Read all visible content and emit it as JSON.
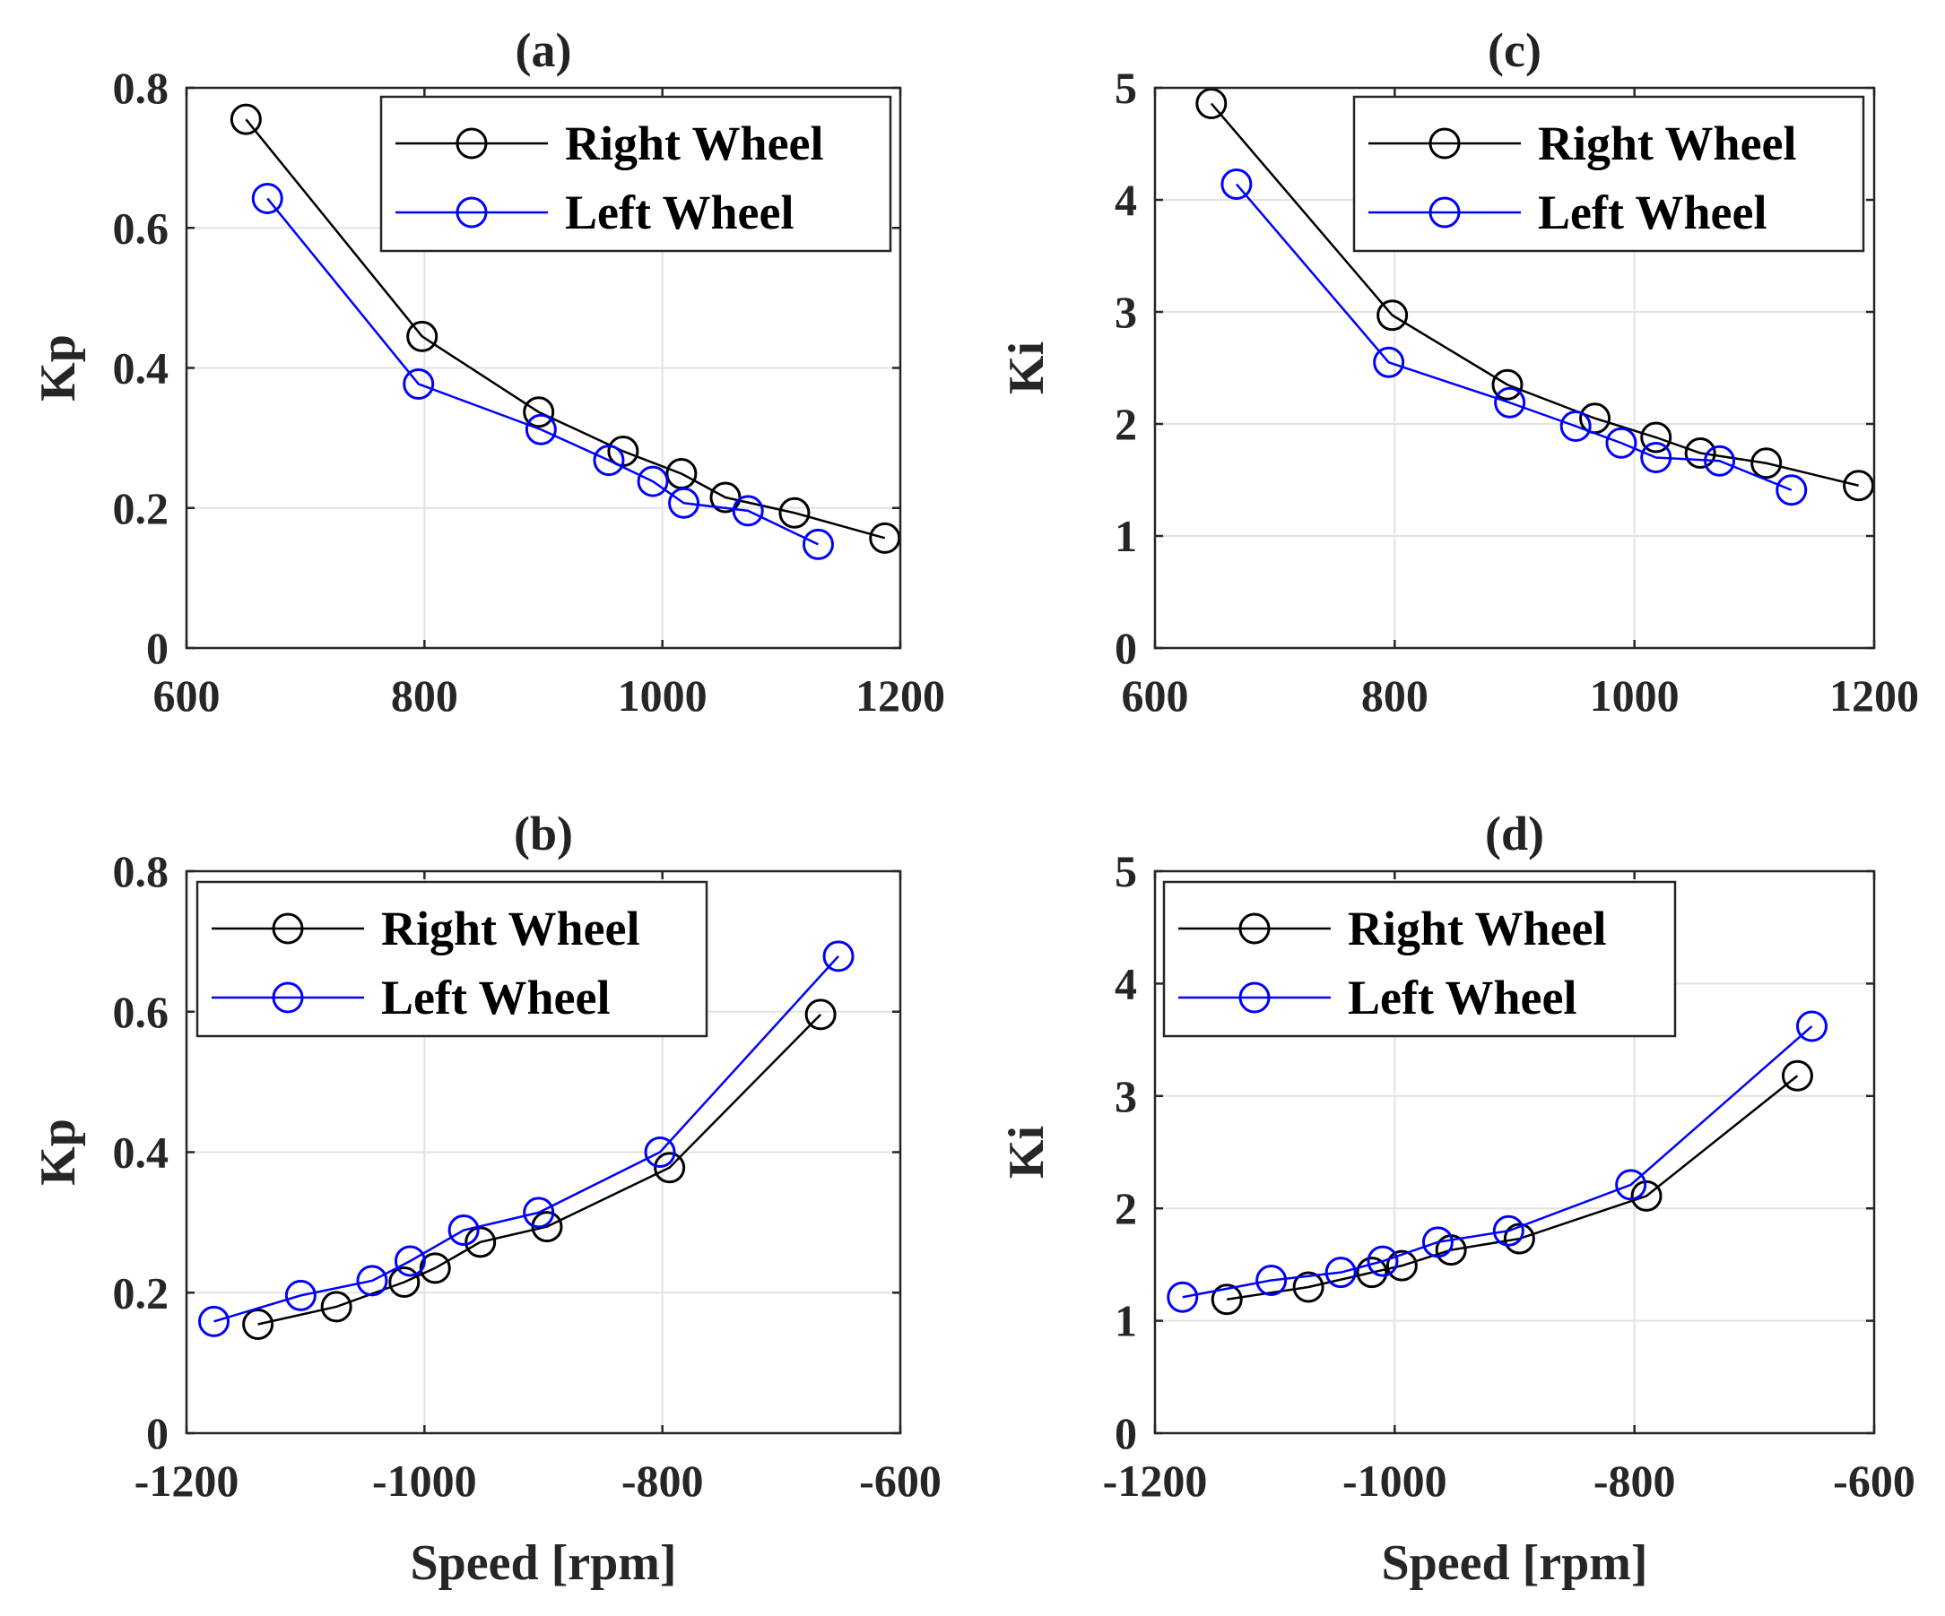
{
  "chart_data": [
    {
      "type": "line",
      "title": "(a)",
      "xlabel": "",
      "ylabel": "Kp",
      "xlim": [
        600,
        1200
      ],
      "ylim": [
        0,
        0.8
      ],
      "xticks": [
        600,
        800,
        1000,
        1200
      ],
      "yticks": [
        0,
        0.2,
        0.4,
        0.6,
        0.8
      ],
      "grid": true,
      "legend_position": "top-right",
      "series": [
        {
          "name": "Right Wheel",
          "color": "#000000",
          "x": [
            650,
            798,
            896,
            967,
            1016,
            1053,
            1111,
            1187
          ],
          "y": [
            0.755,
            0.445,
            0.337,
            0.281,
            0.249,
            0.215,
            0.193,
            0.157
          ]
        },
        {
          "name": "Left Wheel",
          "color": "#0000ff",
          "x": [
            668,
            795,
            898,
            955,
            992,
            1018,
            1072,
            1131
          ],
          "y": [
            0.642,
            0.377,
            0.312,
            0.268,
            0.238,
            0.207,
            0.196,
            0.148
          ]
        }
      ]
    },
    {
      "type": "line",
      "title": "(b)",
      "xlabel": "Speed [rpm]",
      "ylabel": "Kp",
      "xlim": [
        -1200,
        -600
      ],
      "ylim": [
        0,
        0.8
      ],
      "xticks": [
        -1200,
        -1000,
        -800,
        -600
      ],
      "yticks": [
        0,
        0.2,
        0.4,
        0.6,
        0.8
      ],
      "grid": true,
      "legend_position": "top-left",
      "series": [
        {
          "name": "Right Wheel",
          "color": "#000000",
          "x": [
            -1140,
            -1074,
            -1017,
            -991,
            -953,
            -897,
            -794,
            -667
          ],
          "y": [
            0.155,
            0.18,
            0.215,
            0.235,
            0.272,
            0.294,
            0.378,
            0.596
          ]
        },
        {
          "name": "Left Wheel",
          "color": "#0000ff",
          "x": [
            -1177,
            -1104,
            -1044,
            -1012,
            -967,
            -904,
            -802,
            -652
          ],
          "y": [
            0.159,
            0.196,
            0.217,
            0.245,
            0.289,
            0.314,
            0.4,
            0.679
          ]
        }
      ]
    },
    {
      "type": "line",
      "title": "(c)",
      "xlabel": "",
      "ylabel": "Ki",
      "xlim": [
        600,
        1200
      ],
      "ylim": [
        0,
        5
      ],
      "xticks": [
        600,
        800,
        1000,
        1200
      ],
      "yticks": [
        0,
        1,
        2,
        3,
        4,
        5
      ],
      "grid": true,
      "legend_position": "top-right",
      "series": [
        {
          "name": "Right Wheel",
          "color": "#000000",
          "x": [
            647,
            798,
            894,
            967,
            1018,
            1055,
            1110,
            1187
          ],
          "y": [
            4.86,
            2.97,
            2.35,
            2.05,
            1.88,
            1.74,
            1.65,
            1.45
          ]
        },
        {
          "name": "Left Wheel",
          "color": "#0000ff",
          "x": [
            668,
            795,
            896,
            951,
            989,
            1018,
            1071,
            1131
          ],
          "y": [
            4.14,
            2.55,
            2.19,
            1.98,
            1.83,
            1.7,
            1.67,
            1.41
          ]
        }
      ]
    },
    {
      "type": "line",
      "title": "(d)",
      "xlabel": "Speed [rpm]",
      "ylabel": "Ki",
      "xlim": [
        -1200,
        -600
      ],
      "ylim": [
        0,
        5
      ],
      "xticks": [
        -1200,
        -1000,
        -800,
        -600
      ],
      "yticks": [
        0,
        1,
        2,
        3,
        4,
        5
      ],
      "grid": true,
      "legend_position": "top-left",
      "series": [
        {
          "name": "Right Wheel",
          "color": "#000000",
          "x": [
            -1140,
            -1072,
            -1019,
            -994,
            -953,
            -896,
            -790,
            -664
          ],
          "y": [
            1.19,
            1.3,
            1.43,
            1.49,
            1.63,
            1.73,
            2.11,
            3.18
          ]
        },
        {
          "name": "Left Wheel",
          "color": "#0000ff",
          "x": [
            -1177,
            -1103,
            -1045,
            -1010,
            -964,
            -905,
            -803,
            -652
          ],
          "y": [
            1.21,
            1.36,
            1.43,
            1.53,
            1.7,
            1.8,
            2.21,
            3.62
          ]
        }
      ]
    }
  ]
}
